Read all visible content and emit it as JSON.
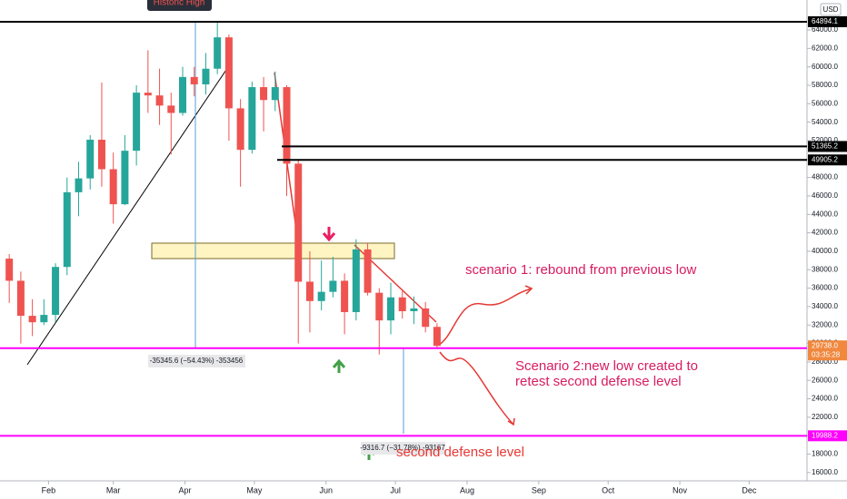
{
  "chart_data": {
    "type": "candlestick",
    "callout": "Historic High",
    "currency": "USD",
    "x": [
      15,
      20,
      25,
      30,
      35,
      40,
      45,
      50,
      55,
      60,
      65,
      70,
      75,
      80,
      85,
      90,
      95,
      100,
      105,
      110,
      115,
      120,
      125,
      130,
      135,
      140,
      145,
      150,
      155,
      160,
      165,
      170,
      175,
      180,
      185,
      190,
      195,
      200
    ],
    "open": [
      39200,
      36800,
      33000,
      32300,
      33100,
      38300,
      46400,
      47900,
      52100,
      48900,
      45100,
      50900,
      57200,
      56900,
      55800,
      55000,
      58900,
      58100,
      59800,
      63200,
      55500,
      51000,
      57800,
      56400,
      57800,
      49500,
      36700,
      34600,
      35600,
      36800,
      33400,
      40200,
      35500,
      32500,
      35000,
      33500,
      33800,
      31800
    ],
    "high": [
      39700,
      37800,
      34800,
      34800,
      38700,
      48000,
      49700,
      52600,
      58300,
      50700,
      52600,
      58000,
      61800,
      59800,
      57200,
      60000,
      60000,
      61500,
      64894.1,
      63500,
      56500,
      58400,
      58900,
      59500,
      58000,
      50000,
      40000,
      39000,
      39400,
      37600,
      41300,
      40900,
      36000,
      36600,
      35900,
      35100,
      34500,
      32200
    ],
    "low": [
      34400,
      30000,
      30800,
      32000,
      32300,
      37400,
      43800,
      46700,
      47000,
      43000,
      45000,
      49300,
      55000,
      53700,
      50500,
      54700,
      56800,
      57000,
      59200,
      52000,
      47000,
      50600,
      53000,
      55200,
      46000,
      30000,
      31200,
      33600,
      35000,
      31000,
      32500,
      35200,
      28800,
      31000,
      32700,
      32100,
      31200,
      29500
    ],
    "close": [
      36800,
      33000,
      32300,
      33100,
      38300,
      46400,
      47900,
      52100,
      48900,
      45100,
      50900,
      57200,
      56900,
      55800,
      55000,
      58900,
      58100,
      59800,
      63200,
      55500,
      51000,
      57800,
      56400,
      57800,
      49500,
      36700,
      34600,
      35600,
      36800,
      33400,
      40200,
      35500,
      32500,
      35000,
      33500,
      33800,
      31800,
      29738
    ],
    "up_color": "#26a69a",
    "down_color": "#ef5350",
    "xlim": [
      11,
      360
    ],
    "xticks": [
      {
        "value": 32,
        "label": "Feb"
      },
      {
        "value": 60,
        "label": "Mar"
      },
      {
        "value": 91,
        "label": "Apr"
      },
      {
        "value": 121,
        "label": "May"
      },
      {
        "value": 152,
        "label": "Jun"
      },
      {
        "value": 182,
        "label": "Jul"
      },
      {
        "value": 213,
        "label": "Aug"
      },
      {
        "value": 244,
        "label": "Sep"
      },
      {
        "value": 274,
        "label": "Oct"
      },
      {
        "value": 305,
        "label": "Nov"
      },
      {
        "value": 335,
        "label": "Dec"
      }
    ],
    "ylim": [
      15100,
      67250
    ],
    "yticks": [
      {
        "value": 16000,
        "label": "16000.0"
      },
      {
        "value": 18000,
        "label": "18000.0"
      },
      {
        "value": 20000,
        "label": "20000.0"
      },
      {
        "value": 22000,
        "label": "22000.0"
      },
      {
        "value": 24000,
        "label": "24000.0"
      },
      {
        "value": 26000,
        "label": "26000.0"
      },
      {
        "value": 28000,
        "label": "28000.0"
      },
      {
        "value": 30000,
        "label": "30000.0"
      },
      {
        "value": 32000,
        "label": "32000.0"
      },
      {
        "value": 34000,
        "label": "34000.0"
      },
      {
        "value": 36000,
        "label": "36000.0"
      },
      {
        "value": 38000,
        "label": "38000.0"
      },
      {
        "value": 40000,
        "label": "40000.0"
      },
      {
        "value": 42000,
        "label": "42000.0"
      },
      {
        "value": 44000,
        "label": "44000.0"
      },
      {
        "value": 46000,
        "label": "46000.0"
      },
      {
        "value": 48000,
        "label": "48000.0"
      },
      {
        "value": 50000,
        "label": "50000.0"
      },
      {
        "value": 52000,
        "label": "52000.0"
      },
      {
        "value": 54000,
        "label": "54000.0"
      },
      {
        "value": 56000,
        "label": "56000.0"
      },
      {
        "value": 58000,
        "label": "58000.0"
      },
      {
        "value": 60000,
        "label": "60000.0"
      },
      {
        "value": 62000,
        "label": "62000.0"
      },
      {
        "value": 64000,
        "label": "64000.0"
      }
    ],
    "grid": false,
    "levels": [
      {
        "value": 64894.1,
        "color": "#000000"
      },
      {
        "value": 51365.2,
        "color": "#000000"
      },
      {
        "value": 49905.2,
        "color": "#000000"
      },
      {
        "value": 29496.2,
        "color": "#ff00ff"
      },
      {
        "value": 19988.2,
        "color": "#ff00ff"
      }
    ],
    "last_price": {
      "value": 29738,
      "label": "29738.0",
      "countdown": "03:35:28",
      "color": "#f0883e"
    },
    "measures": [
      "-35345.6 (−54.43%) -353456",
      "-9316.7 (−31.78%) -93167"
    ],
    "annotations": [
      "scenario 1: rebound from previous low",
      "Scenario 2:new low created to",
      "retest second defense level",
      "second defense level"
    ]
  }
}
